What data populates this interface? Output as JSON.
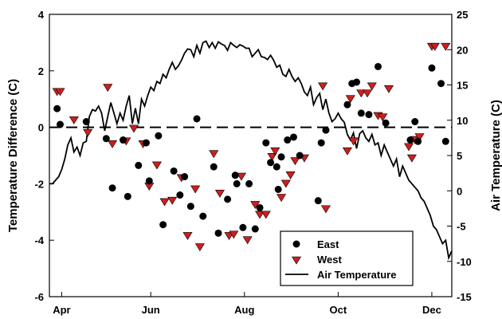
{
  "chart_data": {
    "type": "scatter",
    "xlabel": "",
    "ylabel": "Temperature Difference (C)",
    "y2label": "Air Temperature (C)",
    "x_categories": [
      "Apr",
      "Jun",
      "Aug",
      "Oct",
      "Dec"
    ],
    "xlim_doy": [
      87,
      349
    ],
    "x_tick_doy": [
      95,
      153,
      214,
      275,
      336
    ],
    "ylim": [
      -6,
      4
    ],
    "y_ticks": [
      -6,
      -4,
      -2,
      0,
      2,
      4
    ],
    "y2lim": [
      -15,
      25
    ],
    "y2_ticks": [
      -15,
      -10,
      -5,
      0,
      5,
      10,
      15,
      20,
      25
    ],
    "reference_line": 0,
    "legend": {
      "placement": "bottom-right",
      "entries": [
        "East",
        "West",
        "Air Temperature"
      ]
    },
    "series": [
      {
        "name": "East",
        "marker": "circle",
        "color": "#000000",
        "x": [
          92,
          94,
          111,
          124,
          128,
          135,
          138,
          145,
          150,
          152,
          158,
          161,
          168,
          172,
          175,
          179,
          183,
          187,
          194,
          197,
          203,
          208,
          209,
          213,
          217,
          221,
          224,
          228,
          231,
          235,
          236,
          238,
          242,
          246,
          250,
          262,
          264,
          267,
          281,
          284,
          287,
          290,
          295,
          301,
          306,
          322,
          325,
          327,
          336,
          342,
          345
        ],
        "y": [
          0.66,
          0.1,
          0.2,
          -0.4,
          -2.15,
          -0.45,
          -2.45,
          -1.35,
          -0.55,
          -1.9,
          -0.3,
          -3.45,
          -1.55,
          -2.4,
          -1.75,
          -2.8,
          0.3,
          -3.15,
          -1.4,
          -3.75,
          -2.55,
          -1.7,
          -2.0,
          -3.55,
          -2.0,
          -3.6,
          -2.85,
          -0.55,
          -1.25,
          -1.4,
          -2.2,
          -1.05,
          -0.45,
          -0.35,
          -1.0,
          -2.6,
          -0.55,
          -0.1,
          0.8,
          1.55,
          1.6,
          0.5,
          0.45,
          2.15,
          0.15,
          -0.45,
          0.2,
          -0.5,
          2.1,
          1.55,
          -0.5
        ]
      },
      {
        "name": "West",
        "marker": "triangle-down",
        "color": "#cc1f1f",
        "x": [
          92,
          94,
          103,
          112,
          125,
          128,
          137,
          142,
          148,
          152,
          157,
          162,
          167,
          173,
          177,
          182,
          185,
          194,
          198,
          204,
          207,
          212,
          216,
          221,
          224,
          228,
          232,
          234,
          238,
          241,
          244,
          247,
          253,
          265,
          267,
          281,
          283,
          285,
          290,
          294,
          297,
          301,
          304,
          308,
          321,
          323,
          325,
          328,
          336,
          338,
          345
        ],
        "y": [
          1.25,
          1.25,
          0.25,
          -0.2,
          1.4,
          -0.6,
          -0.5,
          -0.05,
          -0.6,
          -2.1,
          -1.35,
          -2.65,
          -2.6,
          -1.8,
          -3.85,
          -2.2,
          -4.25,
          -0.95,
          -2.35,
          -3.85,
          -3.8,
          -1.75,
          -4.0,
          -2.75,
          -3.1,
          -3.1,
          -1.05,
          -0.85,
          -2.5,
          -2.0,
          -1.7,
          -1.2,
          -1.1,
          1.45,
          -2.9,
          -0.85,
          1.0,
          -0.5,
          1.2,
          1.2,
          1.45,
          0.4,
          0.35,
          1.35,
          -0.7,
          -1.1,
          -0.45,
          -0.35,
          2.85,
          2.85,
          2.85
        ]
      },
      {
        "name": "Air Temperature",
        "marker": "line",
        "color": "#000000",
        "axis": "right",
        "x": [
          87,
          89,
          91,
          93,
          95,
          97,
          99,
          101,
          103,
          105,
          107,
          109,
          111,
          113,
          115,
          117,
          119,
          121,
          123,
          125,
          127,
          129,
          131,
          133,
          135,
          137,
          139,
          141,
          143,
          145,
          147,
          149,
          151,
          153,
          155,
          157,
          159,
          161,
          163,
          165,
          167,
          169,
          171,
          173,
          175,
          177,
          179,
          181,
          183,
          185,
          187,
          189,
          191,
          193,
          195,
          197,
          199,
          201,
          203,
          205,
          207,
          209,
          211,
          213,
          215,
          217,
          219,
          221,
          223,
          225,
          227,
          229,
          231,
          233,
          235,
          237,
          239,
          241,
          243,
          245,
          247,
          249,
          251,
          253,
          255,
          257,
          259,
          261,
          263,
          265,
          267,
          269,
          271,
          273,
          275,
          277,
          279,
          281,
          283,
          285,
          287,
          289,
          291,
          293,
          295,
          297,
          299,
          301,
          303,
          305,
          307,
          309,
          311,
          313,
          315,
          317,
          319,
          321,
          323,
          325,
          327,
          329,
          331,
          333,
          335,
          337,
          339,
          341,
          343,
          345,
          347,
          349
        ],
        "y": [
          1,
          1,
          1.5,
          2,
          3,
          4.5,
          6.5,
          7.5,
          5.5,
          6.2,
          5,
          6.8,
          7,
          10.5,
          11.5,
          11.3,
          12,
          11,
          8.5,
          10.5,
          12.5,
          11,
          9.5,
          11,
          10,
          12,
          13.5,
          9.5,
          11.7,
          9.5,
          13,
          12,
          13.5,
          14.7,
          14.2,
          15.5,
          15.2,
          16.5,
          16,
          17.2,
          18.2,
          17.2,
          17.7,
          18.5,
          19.5,
          20.1,
          20,
          19,
          20.6,
          19.5,
          21,
          21.2,
          20.3,
          21,
          20.2,
          21.1,
          20.8,
          20.6,
          19.9,
          21,
          20.6,
          20.3,
          20.7,
          20.5,
          20.2,
          20.2,
          19,
          19.5,
          20,
          19,
          18.9,
          18.6,
          19.2,
          18.5,
          17.5,
          17.8,
          16.5,
          16.2,
          17.2,
          16.2,
          15.5,
          16,
          15.2,
          14,
          13.5,
          14.7,
          12.2,
          13.2,
          13.8,
          11.5,
          13,
          11,
          9.8,
          10.2,
          11,
          10.2,
          9.7,
          8,
          7.2,
          8.2,
          6,
          8.1,
          8.5,
          7.5,
          7,
          8,
          6.5,
          6.8,
          5,
          6.5,
          5.5,
          4.5,
          3.5,
          4.5,
          2,
          3.5,
          2.5,
          1.5,
          1,
          0.5,
          0,
          -1,
          -1.5,
          -2.5,
          -3.5,
          -5,
          -5.5,
          -6.5,
          -7.5,
          -7,
          -9.5,
          -8.5
        ]
      }
    ]
  }
}
